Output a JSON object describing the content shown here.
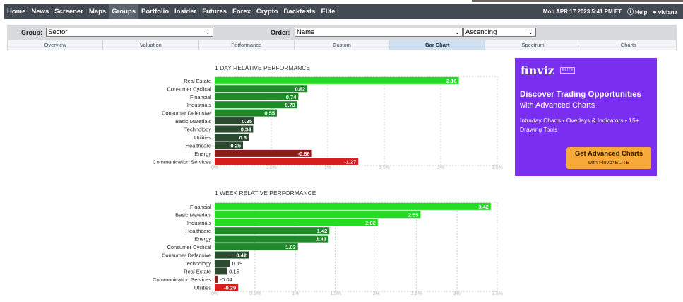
{
  "nav": {
    "items": [
      "Home",
      "News",
      "Screener",
      "Maps",
      "Groups",
      "Portfolio",
      "Insider",
      "Futures",
      "Forex",
      "Crypto",
      "Backtests",
      "Elite"
    ],
    "active_index": 4,
    "datetime": "Mon APR 17 2023 5:41 PM ET",
    "help_label": "Help",
    "help_icon": "help-circle-icon",
    "user_label": "viviana",
    "user_icon": "user-icon"
  },
  "filters": {
    "group_label": "Group:",
    "group_value": "Sector",
    "order_label": "Order:",
    "order_value": "Name",
    "direction_value": "Ascending"
  },
  "tabs": {
    "items": [
      "Overview",
      "Valuation",
      "Performance",
      "Custom",
      "Bar Chart",
      "Spectrum",
      "Charts"
    ],
    "active_index": 4
  },
  "colors": {
    "positive_bright": "#22dd22",
    "positive_mid": "#1f8a2a",
    "positive_dark": "#2c4a30",
    "negative_mid": "#8b1c1c",
    "negative_bright": "#d81f1f",
    "ad_background": "#7a2ff0",
    "ad_button": "#f7a93b"
  },
  "chart_data": [
    {
      "type": "bar",
      "orientation": "horizontal",
      "title": "1 DAY RELATIVE PERFORMANCE",
      "categories": [
        "Real Estate",
        "Consumer Cyclical",
        "Financial",
        "Industrials",
        "Consumer Defensive",
        "Basic Materials",
        "Technology",
        "Utilities",
        "Healthcare",
        "Energy",
        "Communication Services"
      ],
      "values": [
        2.16,
        0.82,
        0.74,
        0.73,
        0.55,
        0.35,
        0.34,
        0.3,
        0.25,
        -0.86,
        -1.27
      ],
      "value_labels": [
        "2.16",
        "0.82",
        "0.74",
        "0.73",
        "0.55",
        "0.35",
        "0.34",
        "0.3",
        "0.25",
        "-0.86",
        "-1.27"
      ],
      "xticks": [
        "0%",
        "0.5%",
        "1%",
        "1.5%",
        "2%",
        "2.5%"
      ],
      "xlim": [
        0,
        2.5
      ],
      "grid": true
    },
    {
      "type": "bar",
      "orientation": "horizontal",
      "title": "1 WEEK RELATIVE PERFORMANCE",
      "categories": [
        "Financial",
        "Basic Materials",
        "Industrials",
        "Healthcare",
        "Energy",
        "Consumer Cyclical",
        "Consumer Defensive",
        "Technology",
        "Real Estate",
        "Communication Services",
        "Utilities"
      ],
      "values": [
        3.42,
        2.55,
        2.02,
        1.42,
        1.41,
        1.03,
        0.42,
        0.19,
        0.15,
        -0.04,
        -0.29
      ],
      "value_labels": [
        "3.42",
        "2.55",
        "2.02",
        "1.42",
        "1.41",
        "1.03",
        "0.42",
        "0.19",
        "0.15",
        "-0.04",
        "-0.29"
      ],
      "xticks": [
        "0%",
        "0.5%",
        "1%",
        "1.5%",
        "2%",
        "2.5%",
        "3%",
        "3.5%"
      ],
      "xlim": [
        0,
        3.5
      ],
      "grid": true
    }
  ],
  "ad": {
    "logo": "finviz",
    "badge": "ELITE",
    "headline": "Discover Trading Opportunities",
    "subheadline": "with Advanced Charts",
    "features": "Intraday Charts • Overlays & Indicators • 15+ Drawing Tools",
    "button_label": "Get Advanced Charts",
    "button_sub": "with Finviz*ELITE"
  }
}
